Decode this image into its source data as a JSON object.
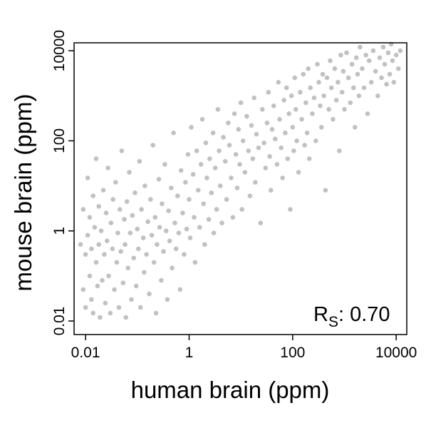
{
  "chart_data": {
    "type": "scatter",
    "title": "",
    "xlabel": "human brain (ppm)",
    "ylabel": "mouse brain (ppm)",
    "x_scale": "log",
    "y_scale": "log",
    "xlim": [
      0.006,
      16000
    ],
    "ylim": [
      0.005,
      15000
    ],
    "x_ticks": [
      {
        "value": 0.01,
        "label": "0.01"
      },
      {
        "value": 1,
        "label": "1"
      },
      {
        "value": 100,
        "label": "100"
      },
      {
        "value": 10000,
        "label": "10000"
      }
    ],
    "y_ticks": [
      {
        "value": 0.01,
        "label": "0.01"
      },
      {
        "value": 1,
        "label": "1"
      },
      {
        "value": 100,
        "label": "100"
      },
      {
        "value": 10000,
        "label": "10000"
      }
    ],
    "grid": false,
    "legend": null,
    "marker_color": "#333333",
    "marker_opacity": 0.3,
    "annotation": {
      "prefix": "R",
      "subscript": "S",
      "suffix": ": 0.70"
    },
    "points": [
      [
        0.008,
        0.5
      ],
      [
        0.009,
        0.05
      ],
      [
        0.009,
        3
      ],
      [
        0.01,
        0.3
      ],
      [
        0.01,
        0.02
      ],
      [
        0.011,
        15
      ],
      [
        0.011,
        0.8
      ],
      [
        0.012,
        0.1
      ],
      [
        0.012,
        2
      ],
      [
        0.013,
        0.03
      ],
      [
        0.013,
        0.4
      ],
      [
        0.014,
        6
      ],
      [
        0.014,
        0.015
      ],
      [
        0.015,
        1.2
      ],
      [
        0.016,
        0.2
      ],
      [
        0.016,
        40
      ],
      [
        0.017,
        0.06
      ],
      [
        0.018,
        3.5
      ],
      [
        0.018,
        0.5
      ],
      [
        0.019,
        0.012
      ],
      [
        0.02,
        1
      ],
      [
        0.021,
        0.08
      ],
      [
        0.022,
        8
      ],
      [
        0.023,
        0.3
      ],
      [
        0.024,
        0.025
      ],
      [
        0.025,
        2.5
      ],
      [
        0.026,
        0.6
      ],
      [
        0.027,
        25
      ],
      [
        0.028,
        0.1
      ],
      [
        0.03,
        0.015
      ],
      [
        0.031,
        1.5
      ],
      [
        0.033,
        0.4
      ],
      [
        0.034,
        5
      ],
      [
        0.036,
        0.05
      ],
      [
        0.038,
        12
      ],
      [
        0.04,
        0.2
      ],
      [
        0.042,
        0.9
      ],
      [
        0.044,
        0.02
      ],
      [
        0.046,
        3
      ],
      [
        0.048,
        0.35
      ],
      [
        0.05,
        60
      ],
      [
        0.053,
        0.07
      ],
      [
        0.056,
        1.8
      ],
      [
        0.058,
        0.5
      ],
      [
        0.06,
        0.012
      ],
      [
        0.063,
        4.5
      ],
      [
        0.066,
        0.15
      ],
      [
        0.07,
        20
      ],
      [
        0.073,
        0.9
      ],
      [
        0.077,
        0.03
      ],
      [
        0.08,
        2.2
      ],
      [
        0.085,
        0.25
      ],
      [
        0.09,
        7
      ],
      [
        0.095,
        0.06
      ],
      [
        0.1,
        1.1
      ],
      [
        0.105,
        0.4
      ],
      [
        0.11,
        35
      ],
      [
        0.115,
        0.02
      ],
      [
        0.12,
        3
      ],
      [
        0.13,
        0.7
      ],
      [
        0.135,
        0.12
      ],
      [
        0.14,
        10
      ],
      [
        0.15,
        0.3
      ],
      [
        0.16,
        1.6
      ],
      [
        0.17,
        0.04
      ],
      [
        0.18,
        5
      ],
      [
        0.19,
        0.8
      ],
      [
        0.2,
        80
      ],
      [
        0.21,
        0.2
      ],
      [
        0.22,
        2
      ],
      [
        0.23,
        0.015
      ],
      [
        0.24,
        0.5
      ],
      [
        0.26,
        14
      ],
      [
        0.27,
        1.2
      ],
      [
        0.29,
        0.08
      ],
      [
        0.3,
        4
      ],
      [
        0.32,
        0.35
      ],
      [
        0.34,
        30
      ],
      [
        0.36,
        1
      ],
      [
        0.38,
        0.03
      ],
      [
        0.4,
        2.8
      ],
      [
        0.42,
        0.6
      ],
      [
        0.45,
        9
      ],
      [
        0.47,
        0.15
      ],
      [
        0.5,
        150
      ],
      [
        0.53,
        1.5
      ],
      [
        0.56,
        0.4
      ],
      [
        0.6,
        6
      ],
      [
        0.63,
        0.9
      ],
      [
        0.67,
        0.05
      ],
      [
        0.7,
        22
      ],
      [
        0.75,
        2.5
      ],
      [
        0.8,
        0.3
      ],
      [
        0.85,
        12
      ],
      [
        0.9,
        1.1
      ],
      [
        0.95,
        50
      ],
      [
        1,
        5
      ],
      [
        1.05,
        0.7
      ],
      [
        1.1,
        200
      ],
      [
        1.2,
        18
      ],
      [
        1.25,
        2
      ],
      [
        1.3,
        0.2
      ],
      [
        1.4,
        60
      ],
      [
        1.5,
        8
      ],
      [
        1.6,
        1.2
      ],
      [
        1.7,
        30
      ],
      [
        1.8,
        300
      ],
      [
        1.9,
        4
      ],
      [
        2,
        0.5
      ],
      [
        2.1,
        90
      ],
      [
        2.2,
        15
      ],
      [
        2.4,
        1.8
      ],
      [
        2.5,
        40
      ],
      [
        2.7,
        7
      ],
      [
        2.9,
        150
      ],
      [
        3,
        0.9
      ],
      [
        3.2,
        25
      ],
      [
        3.4,
        3
      ],
      [
        3.6,
        500
      ],
      [
        3.8,
        60
      ],
      [
        4,
        10
      ],
      [
        4.3,
        1.5
      ],
      [
        4.6,
        120
      ],
      [
        5,
        35
      ],
      [
        5.3,
        5
      ],
      [
        5.7,
        250
      ],
      [
        6,
        80
      ],
      [
        6.5,
        15
      ],
      [
        7,
        2
      ],
      [
        7.5,
        400
      ],
      [
        8,
        50
      ],
      [
        8.5,
        9
      ],
      [
        9,
        180
      ],
      [
        9.5,
        30
      ],
      [
        10,
        700
      ],
      [
        10.5,
        3
      ],
      [
        11,
        100
      ],
      [
        12,
        20
      ],
      [
        13,
        350
      ],
      [
        14,
        60
      ],
      [
        15,
        6
      ],
      [
        16,
        220
      ],
      [
        17,
        40
      ],
      [
        18,
        900
      ],
      [
        19,
        12
      ],
      [
        20,
        140
      ],
      [
        22,
        70
      ],
      [
        24,
        1.5
      ],
      [
        26,
        500
      ],
      [
        28,
        90
      ],
      [
        30,
        25
      ],
      [
        32,
        250
      ],
      [
        34,
        1200
      ],
      [
        36,
        45
      ],
      [
        38,
        8
      ],
      [
        40,
        180
      ],
      [
        43,
        600
      ],
      [
        46,
        110
      ],
      [
        50,
        30
      ],
      [
        53,
        2000
      ],
      [
        56,
        300
      ],
      [
        60,
        70
      ],
      [
        64,
        15
      ],
      [
        68,
        800
      ],
      [
        72,
        150
      ],
      [
        76,
        1500
      ],
      [
        80,
        40
      ],
      [
        85,
        400
      ],
      [
        90,
        3
      ],
      [
        95,
        1000
      ],
      [
        100,
        200
      ],
      [
        105,
        60
      ],
      [
        110,
        2500
      ],
      [
        115,
        500
      ],
      [
        120,
        100
      ],
      [
        130,
        20
      ],
      [
        140,
        1200
      ],
      [
        150,
        300
      ],
      [
        160,
        3000
      ],
      [
        170,
        80
      ],
      [
        180,
        700
      ],
      [
        190,
        150
      ],
      [
        200,
        4000
      ],
      [
        210,
        40
      ],
      [
        220,
        1500
      ],
      [
        240,
        400
      ],
      [
        260,
        900
      ],
      [
        280,
        100
      ],
      [
        300,
        5000
      ],
      [
        320,
        2000
      ],
      [
        340,
        600
      ],
      [
        360,
        200
      ],
      [
        380,
        3000
      ],
      [
        400,
        1000
      ],
      [
        430,
        8
      ],
      [
        460,
        2500
      ],
      [
        500,
        500
      ],
      [
        530,
        6000
      ],
      [
        560,
        1500
      ],
      [
        600,
        300
      ],
      [
        650,
        4000
      ],
      [
        700,
        800
      ],
      [
        750,
        2000
      ],
      [
        800,
        60
      ],
      [
        850,
        8000
      ],
      [
        900,
        1200
      ],
      [
        950,
        3500
      ],
      [
        1000,
        500
      ],
      [
        1100,
        9000
      ],
      [
        1200,
        2500
      ],
      [
        1300,
        700
      ],
      [
        1400,
        5000
      ],
      [
        1500,
        1500
      ],
      [
        1600,
        200
      ],
      [
        1700,
        7000
      ],
      [
        1800,
        3000
      ],
      [
        1900,
        1000
      ],
      [
        2000,
        12000
      ],
      [
        2200,
        4000
      ],
      [
        2400,
        1500
      ],
      [
        2600,
        8000
      ],
      [
        2800,
        400
      ],
      [
        3000,
        6000
      ],
      [
        3300,
        2000
      ],
      [
        3600,
        10000
      ],
      [
        4000,
        3500
      ],
      [
        4400,
        1000
      ],
      [
        4800,
        7000
      ],
      [
        5200,
        2500
      ],
      [
        5600,
        12000
      ],
      [
        6000,
        5000
      ],
      [
        6500,
        1800
      ],
      [
        7000,
        9000
      ],
      [
        7500,
        3000
      ],
      [
        8000,
        14000
      ],
      [
        8500,
        6000
      ],
      [
        9000,
        2000
      ],
      [
        10000,
        8000
      ],
      [
        11000,
        4000
      ],
      [
        12000,
        10000
      ]
    ]
  }
}
